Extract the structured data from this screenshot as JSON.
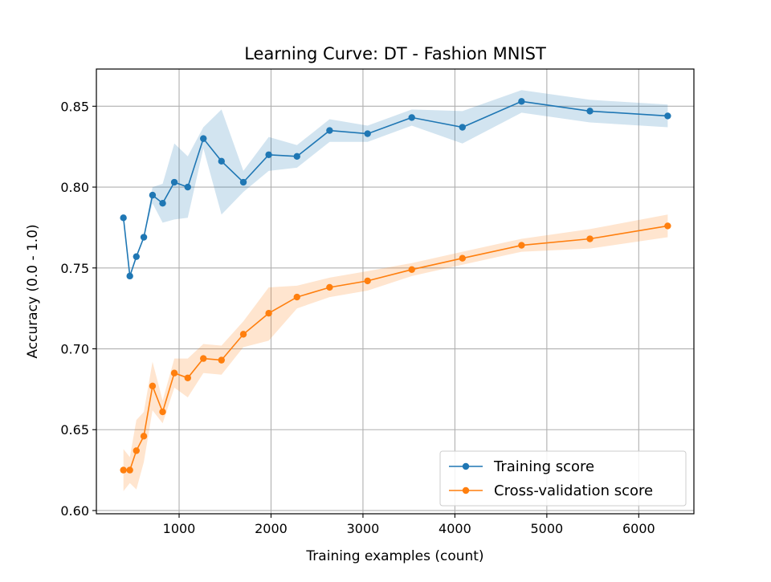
{
  "chart_data": {
    "type": "line",
    "title": "Learning Curve: DT - Fashion MNIST",
    "xlabel": "Training examples (count)",
    "ylabel": "Accuracy (0.0 - 1.0)",
    "xlim": [
      100,
      6600
    ],
    "ylim": [
      0.598,
      0.873
    ],
    "xticks": [
      1000,
      2000,
      3000,
      4000,
      5000,
      6000
    ],
    "yticks": [
      0.6,
      0.65,
      0.7,
      0.75,
      0.8,
      0.85
    ],
    "xtick_labels": [
      "1000",
      "2000",
      "3000",
      "4000",
      "5000",
      "6000"
    ],
    "ytick_labels": [
      "0.60",
      "0.65",
      "0.70",
      "0.75",
      "0.80",
      "0.85"
    ],
    "grid": true,
    "legend_position": "lower-right",
    "x": [
      394,
      464,
      535,
      616,
      711,
      821,
      948,
      1094,
      1264,
      1461,
      1699,
      1975,
      2282,
      2637,
      3050,
      3531,
      4082,
      4725,
      5469,
      6315
    ],
    "series": [
      {
        "name": "Training score",
        "color": "#1f77b4",
        "band_color": "#1f77b4",
        "values": [
          0.781,
          0.745,
          0.757,
          0.769,
          0.795,
          0.79,
          0.803,
          0.8,
          0.83,
          0.816,
          0.803,
          0.82,
          0.819,
          0.835,
          0.833,
          0.843,
          0.837,
          0.853,
          0.847,
          0.844
        ],
        "lower": [
          0.781,
          0.745,
          0.757,
          0.769,
          0.79,
          0.778,
          0.78,
          0.781,
          0.824,
          0.783,
          0.797,
          0.81,
          0.812,
          0.828,
          0.828,
          0.838,
          0.827,
          0.846,
          0.84,
          0.837
        ],
        "upper": [
          0.781,
          0.745,
          0.757,
          0.769,
          0.8,
          0.802,
          0.827,
          0.819,
          0.837,
          0.848,
          0.81,
          0.831,
          0.826,
          0.842,
          0.838,
          0.848,
          0.847,
          0.86,
          0.854,
          0.851
        ]
      },
      {
        "name": "Cross-validation score",
        "color": "#ff7f0e",
        "band_color": "#ff7f0e",
        "values": [
          0.625,
          0.625,
          0.637,
          0.646,
          0.677,
          0.661,
          0.685,
          0.682,
          0.694,
          0.693,
          0.709,
          0.722,
          0.732,
          0.738,
          0.742,
          0.749,
          0.756,
          0.764,
          0.768,
          0.776
        ],
        "lower": [
          0.612,
          0.617,
          0.613,
          0.63,
          0.662,
          0.654,
          0.676,
          0.67,
          0.685,
          0.684,
          0.701,
          0.705,
          0.725,
          0.732,
          0.736,
          0.745,
          0.752,
          0.76,
          0.762,
          0.769
        ],
        "upper": [
          0.638,
          0.633,
          0.656,
          0.661,
          0.692,
          0.668,
          0.694,
          0.694,
          0.703,
          0.702,
          0.717,
          0.738,
          0.739,
          0.744,
          0.748,
          0.753,
          0.76,
          0.768,
          0.774,
          0.783
        ]
      }
    ]
  }
}
